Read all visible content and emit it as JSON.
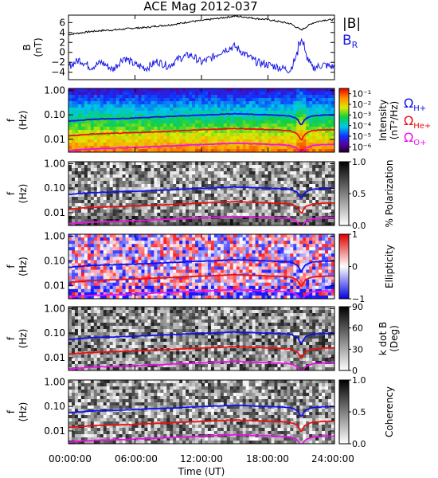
{
  "title": "ACE Mag 2012-037",
  "x_axis": {
    "ticks": [
      "00:00:00",
      "06:00:00",
      "12:00:00",
      "18:00:00",
      "24:00:00"
    ],
    "label": "Time (UT)"
  },
  "colors": {
    "H": "#1010ee",
    "He": "#e81010",
    "O": "#ee10ee",
    "B": "#000000",
    "BR": "#1a1ae6"
  },
  "chart_data": [
    {
      "type": "line",
      "panel": "magnetic field",
      "ylabel": "B",
      "yunit": "(nT)",
      "ylim": [
        -5.5,
        7.5
      ],
      "yticks": [
        "6",
        "4",
        "2",
        "0",
        "−2",
        "−4"
      ],
      "ytick_values": [
        6,
        4,
        2,
        0,
        -2,
        -4
      ],
      "x": [
        0,
        1,
        2,
        3,
        4,
        5,
        6,
        7,
        8,
        9,
        10,
        11,
        12,
        13,
        14,
        15,
        16,
        17,
        18,
        19,
        20,
        21,
        22,
        23,
        24
      ],
      "series": [
        {
          "name": "|B|",
          "color": "#000000",
          "values": [
            3.6,
            3.9,
            4.2,
            4.4,
            4.5,
            4.7,
            4.9,
            5.0,
            5.3,
            5.5,
            5.8,
            6.2,
            6.4,
            6.7,
            7.0,
            7.3,
            7.1,
            6.8,
            6.6,
            6.2,
            5.8,
            4.5,
            5.9,
            6.5,
            6.6
          ]
        },
        {
          "name": "B_R",
          "color": "#1a1ae6",
          "values": [
            -2.8,
            -1.5,
            -3.0,
            -2.0,
            -3.5,
            -1.0,
            -2.5,
            -3.2,
            -1.8,
            -2.8,
            -1.2,
            -0.5,
            -2.0,
            -1.0,
            0.5,
            1.2,
            -0.5,
            -2.0,
            -2.5,
            -3.0,
            -3.6,
            1.5,
            -3.2,
            -2.5,
            -3.0
          ]
        }
      ]
    },
    {
      "type": "heatmap",
      "panel": "intensity",
      "ylabel": "f",
      "yunit": "(Hz)",
      "yscale": "log",
      "ylim": [
        0.003,
        1.2
      ],
      "yticks": [
        "1.00",
        "0.10",
        "0.01"
      ],
      "colorbar": {
        "label": "Intensity",
        "unit": "(nT²/Hz)",
        "ticks": [
          "10⁻¹",
          "10⁻²",
          "10⁻³",
          "10⁻⁴",
          "10⁻⁵",
          "10⁻⁶"
        ],
        "range_log10": [
          -6.5,
          -0.5
        ],
        "colormap": "rainbow"
      }
    },
    {
      "type": "heatmap",
      "panel": "polarization",
      "ylabel": "f",
      "yunit": "(Hz)",
      "yscale": "log",
      "ylim": [
        0.003,
        1.2
      ],
      "yticks": [
        "1.00",
        "0.10",
        "0.01"
      ],
      "colorbar": {
        "label": "% Polarization",
        "ticks": [
          "1.0",
          "0.5",
          "0.0"
        ],
        "range": [
          0,
          1
        ],
        "colormap": "gray"
      }
    },
    {
      "type": "heatmap",
      "panel": "ellipticity",
      "ylabel": "f",
      "yunit": "(Hz)",
      "yscale": "log",
      "ylim": [
        0.003,
        1.2
      ],
      "yticks": [
        "1.00",
        "0.10",
        "0.01"
      ],
      "colorbar": {
        "label": "Ellipticity",
        "ticks": [
          "1",
          "0",
          "−1"
        ],
        "range": [
          -1,
          1
        ],
        "colormap": "blue-white-red"
      }
    },
    {
      "type": "heatmap",
      "panel": "k dot B",
      "ylabel": "f",
      "yunit": "(Hz)",
      "yscale": "log",
      "ylim": [
        0.003,
        1.2
      ],
      "yticks": [
        "1.00",
        "0.10",
        "0.01"
      ],
      "colorbar": {
        "label": "k dot B",
        "unit": "(Deg)",
        "ticks": [
          "90",
          "60",
          "30",
          "0"
        ],
        "range": [
          0,
          90
        ],
        "colormap": "gray"
      }
    },
    {
      "type": "heatmap",
      "panel": "coherency",
      "ylabel": "f",
      "yunit": "(Hz)",
      "yscale": "log",
      "ylim": [
        0.003,
        1.2
      ],
      "yticks": [
        "1.00",
        "0.10",
        "0.01"
      ],
      "colorbar": {
        "label": "Coherency",
        "ticks": [
          "1.0",
          "0.5",
          "0.0"
        ],
        "range": [
          0,
          1
        ],
        "colormap": "gray"
      }
    }
  ],
  "legends": {
    "field": [
      {
        "text": "|B|",
        "color": "#000000"
      },
      {
        "text": "B",
        "sub": "R",
        "color": "#1a1ae6"
      }
    ],
    "gyro": [
      {
        "text": "Ω",
        "sub": "H+",
        "color": "#1010ee"
      },
      {
        "text": "Ω",
        "sub": "He+",
        "color": "#e81010"
      },
      {
        "text": "Ω",
        "sub": "O+",
        "color": "#ee10ee"
      }
    ]
  },
  "gyrofrequency_lines": {
    "x": [
      0,
      1,
      2,
      3,
      4,
      5,
      6,
      7,
      8,
      9,
      10,
      11,
      12,
      13,
      14,
      15,
      16,
      17,
      18,
      19,
      20,
      20.6,
      21.0,
      21.4,
      22,
      23,
      24
    ],
    "H+": [
      0.055,
      0.06,
      0.065,
      0.068,
      0.07,
      0.072,
      0.075,
      0.078,
      0.082,
      0.085,
      0.09,
      0.094,
      0.098,
      0.102,
      0.107,
      0.112,
      0.108,
      0.104,
      0.1,
      0.096,
      0.09,
      0.07,
      0.035,
      0.07,
      0.09,
      0.098,
      0.1
    ]
  }
}
